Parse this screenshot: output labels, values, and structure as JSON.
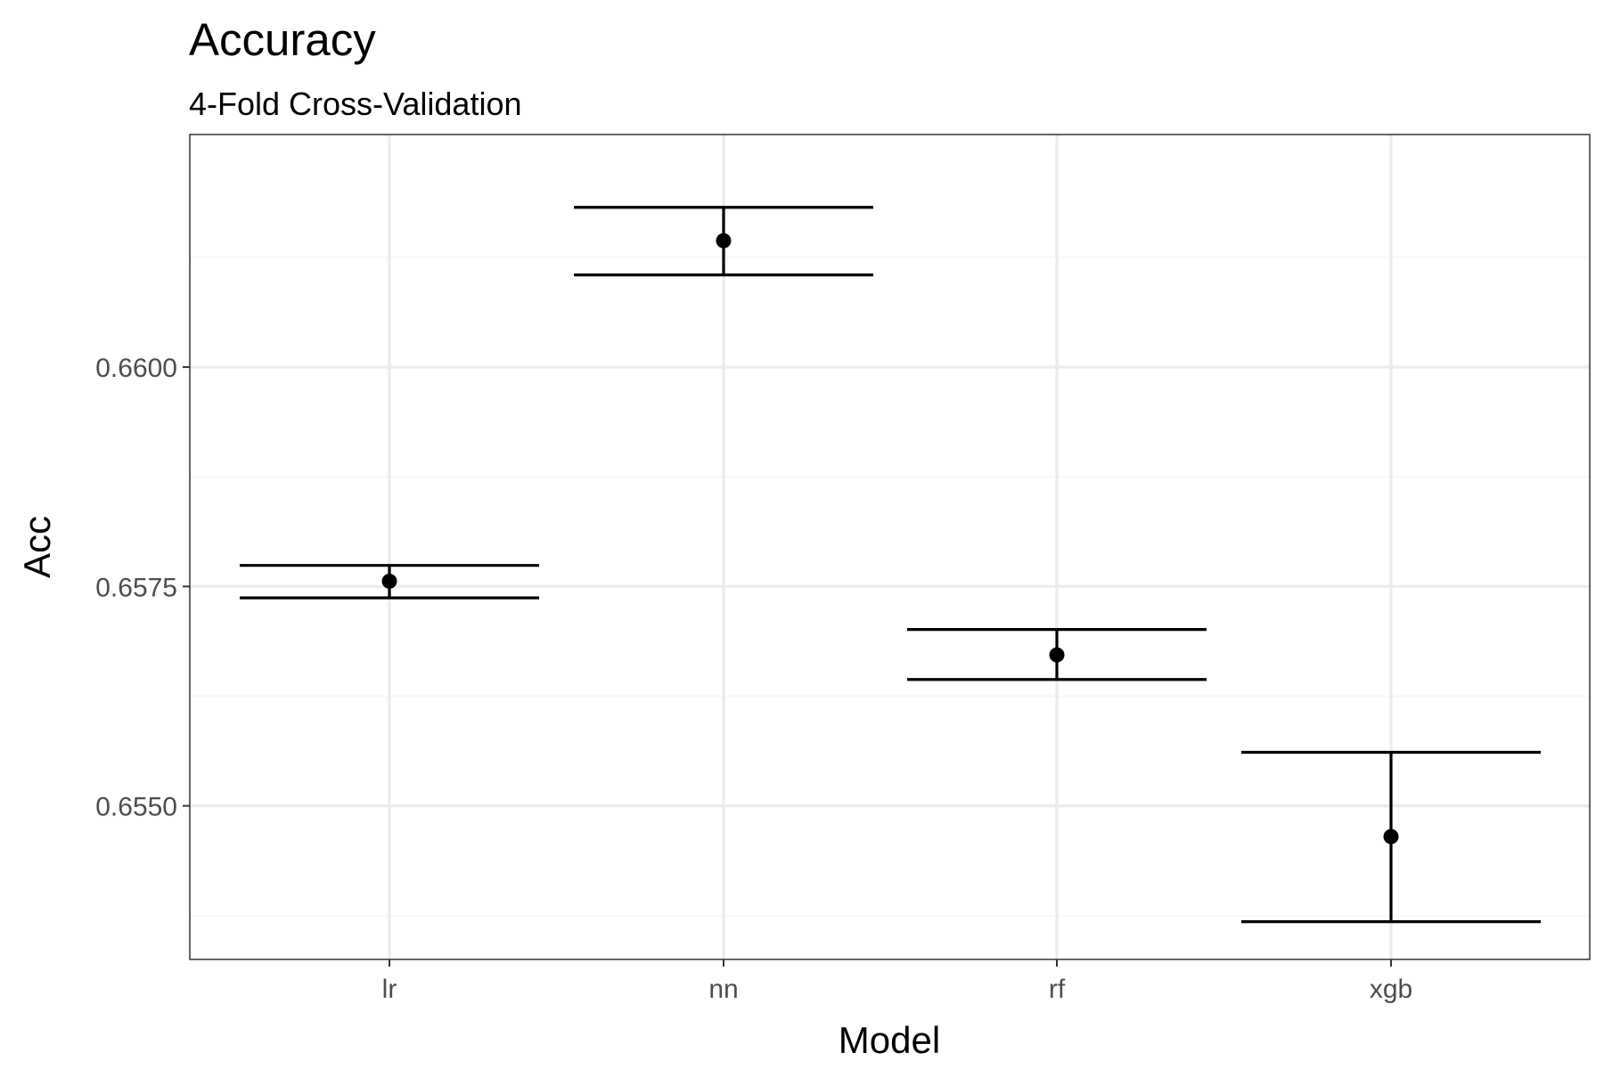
{
  "chart_data": {
    "type": "scatter",
    "title": "Accuracy",
    "subtitle": "4-Fold Cross-Validation",
    "xlabel": "Model",
    "ylabel": "Acc",
    "categories": [
      "lr",
      "nn",
      "rf",
      "xgb"
    ],
    "points": [
      {
        "x": "lr",
        "y": 0.65756,
        "ymin": 0.65737,
        "ymax": 0.65774
      },
      {
        "x": "nn",
        "y": 0.66144,
        "ymin": 0.66105,
        "ymax": 0.66182
      },
      {
        "x": "rf",
        "y": 0.65672,
        "ymin": 0.65644,
        "ymax": 0.65701
      },
      {
        "x": "xgb",
        "y": 0.65465,
        "ymin": 0.65368,
        "ymax": 0.65561
      }
    ],
    "ylim": [
      0.65325,
      0.66265
    ],
    "y_ticks": [
      "0.6550",
      "0.6575",
      "0.6600"
    ],
    "y_tick_values": [
      0.655,
      0.6575,
      0.66
    ],
    "y_minor_ticks": [
      0.65375,
      0.65625,
      0.65875,
      0.66125
    ],
    "grid": true,
    "colors": {
      "panel_border": "#333333",
      "grid_major": "#ebebeb",
      "grid_minor": "#f5f5f5",
      "marks": "#000000",
      "tick_text": "#4d4d4d"
    }
  }
}
